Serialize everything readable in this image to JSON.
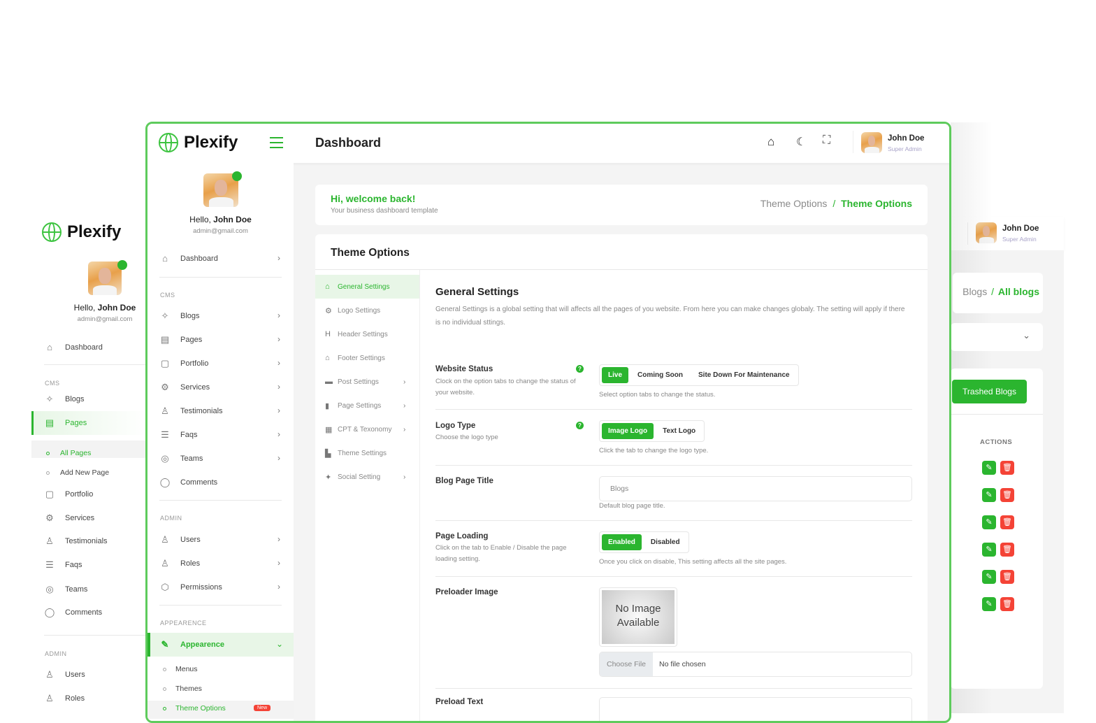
{
  "colors": {
    "accent": "#2bb52f",
    "danger": "#f44336"
  },
  "back": {
    "brand": "Plexify",
    "user": {
      "greeting": "Hello, ",
      "name": "John Doe",
      "email": "admin@gmail.com",
      "role": "Super Admin"
    },
    "sidebar": {
      "dashboard": "Dashboard",
      "cms": "CMS",
      "admin": "ADMIN",
      "items": [
        {
          "label": "Blogs",
          "icon": "pin-icon"
        },
        {
          "label": "Pages",
          "icon": "pages-icon",
          "active": true
        },
        {
          "label": "All Pages",
          "sub": true,
          "active": true
        },
        {
          "label": "Add New Page",
          "sub": true
        },
        {
          "label": "Portfolio",
          "icon": "briefcase-icon"
        },
        {
          "label": "Services",
          "icon": "gear-icon"
        },
        {
          "label": "Testimonials",
          "icon": "testimonial-icon"
        },
        {
          "label": "Faqs",
          "icon": "list-icon"
        },
        {
          "label": "Teams",
          "icon": "team-icon"
        },
        {
          "label": "Comments",
          "icon": "comment-icon"
        }
      ],
      "admin_items": [
        {
          "label": "Users",
          "icon": "user-icon"
        },
        {
          "label": "Roles",
          "icon": "roles-icon"
        }
      ]
    },
    "breadcrumb": {
      "parent": "Blogs",
      "sep": "/",
      "current": "All blogs"
    },
    "trashed_button": "Trashed Blogs",
    "actions_header": "ACTIONS",
    "action_rows": 6
  },
  "front": {
    "brand": "Plexify",
    "header": {
      "title": "Dashboard",
      "user": "John Doe",
      "role": "Super Admin"
    },
    "user": {
      "greeting": "Hello, ",
      "name": "John Doe",
      "email": "admin@gmail.com"
    },
    "sidebar": {
      "dashboard": "Dashboard",
      "cms": "CMS",
      "admin": "ADMIN",
      "appearance_section": "APPEARENCE",
      "cms_items": [
        {
          "label": "Blogs",
          "icon": "pin-icon"
        },
        {
          "label": "Pages",
          "icon": "pages-icon"
        },
        {
          "label": "Portfolio",
          "icon": "briefcase-icon"
        },
        {
          "label": "Services",
          "icon": "gear-icon"
        },
        {
          "label": "Testimonials",
          "icon": "testimonial-icon"
        },
        {
          "label": "Faqs",
          "icon": "list-icon"
        },
        {
          "label": "Teams",
          "icon": "team-icon"
        },
        {
          "label": "Comments",
          "icon": "comment-icon"
        }
      ],
      "admin_items": [
        {
          "label": "Users",
          "icon": "user-icon"
        },
        {
          "label": "Roles",
          "icon": "roles-icon"
        },
        {
          "label": "Permissions",
          "icon": "shield-icon"
        }
      ],
      "appearance": "Appearence",
      "appearance_sub": [
        {
          "label": "Menus"
        },
        {
          "label": "Themes"
        },
        {
          "label": "Theme Options",
          "active": true,
          "badge": "New"
        }
      ]
    },
    "welcome": {
      "title": "Hi, welcome back!",
      "subtitle": "Your business dashboard template"
    },
    "breadcrumb": {
      "parent": "Theme Options",
      "sep": "/",
      "current": "Theme Options"
    },
    "card_title": "Theme Options",
    "settings_nav": [
      {
        "label": "General Settings",
        "icon": "home-icon",
        "active": true
      },
      {
        "label": "Logo Settings",
        "icon": "cogs-icon"
      },
      {
        "label": "Header Settings",
        "icon": "heading-icon"
      },
      {
        "label": "Footer Settings",
        "icon": "home-icon"
      },
      {
        "label": "Post Settings",
        "icon": "post-icon",
        "chevron": true
      },
      {
        "label": "Page Settings",
        "icon": "file-icon",
        "chevron": true
      },
      {
        "label": "CPT & Texonomy",
        "icon": "grid-icon",
        "chevron": true
      },
      {
        "label": "Theme Settings",
        "icon": "palette-icon"
      },
      {
        "label": "Social Setting",
        "icon": "twitter-icon",
        "chevron": true
      }
    ],
    "general": {
      "title": "General Settings",
      "description": "General Settings is a global setting that will affects all the pages of you website. From here you can make changes globaly. The setting will apply if there is no individual sttings.",
      "website_status": {
        "label": "Website Status",
        "hint": "Clock on the option tabs to change the status of your website.",
        "options": [
          "Live",
          "Coming Soon",
          "Site Down For Maintenance"
        ],
        "selected": "Live",
        "help": "Select option tabs to change the status."
      },
      "logo_type": {
        "label": "Logo Type",
        "hint": "Choose the logo type",
        "options": [
          "Image Logo",
          "Text Logo"
        ],
        "selected": "Image Logo",
        "help": "Click the tab to change the logo type."
      },
      "blog_title": {
        "label": "Blog Page Title",
        "value": "Blogs",
        "help": "Default blog page title."
      },
      "page_loading": {
        "label": "Page Loading",
        "hint": "Click on the tab to Enable / Disable the page loading setting.",
        "options": [
          "Enabled",
          "Disabled"
        ],
        "selected": "Enabled",
        "help": "Once you click on disable, This setting affects all the site pages."
      },
      "preloader_image": {
        "label": "Preloader Image",
        "placeholder_line1": "No Image",
        "placeholder_line2": "Available",
        "choose_button": "Choose File",
        "file_status": "No file chosen"
      },
      "preload_text": {
        "label": "Preload Text",
        "value": ""
      }
    }
  }
}
